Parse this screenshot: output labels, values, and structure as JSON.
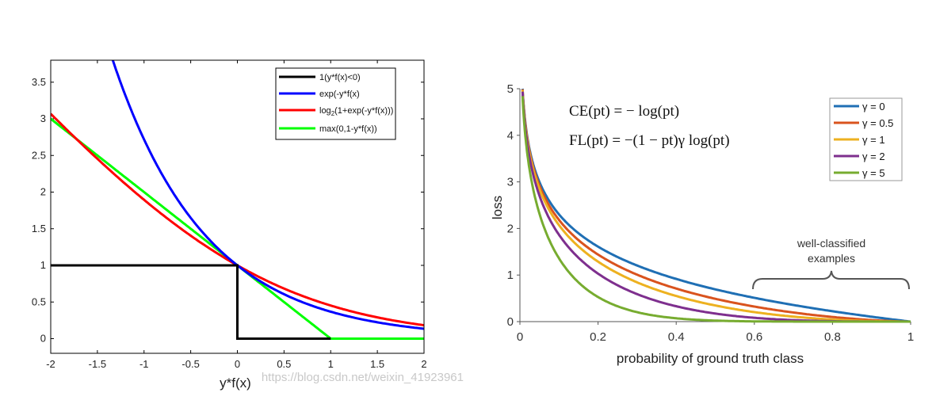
{
  "chart_data": [
    {
      "type": "line",
      "xlabel": "y*f(x)",
      "xlim": [
        -2,
        2
      ],
      "ylim": [
        -0.2,
        3.8
      ],
      "x_ticks": [
        "-2",
        "-1.5",
        "-1",
        "-0.5",
        "0",
        "0.5",
        "1",
        "1.5",
        "2"
      ],
      "y_ticks": [
        "0",
        "0.5",
        "1",
        "1.5",
        "2",
        "2.5",
        "3",
        "3.5"
      ],
      "legend_position": "top-right",
      "series": [
        {
          "name": "1(y*f(x)<0)",
          "label_main": "1(y*f(x)<0)",
          "function": "zero_one",
          "color": "#000000"
        },
        {
          "name": "exp(-y*f(x)",
          "label_main": "exp(-y*f(x)",
          "function": "exponential",
          "color": "#0000ff"
        },
        {
          "name": "log2(1+exp(-y*f(x)))",
          "label_main": "log",
          "label_sub": "2",
          "label_rest": "(1+exp(-y*f(x)))",
          "function": "logistic",
          "color": "#ff0000"
        },
        {
          "name": "max(0,1-y*f(x))",
          "label_main": "max(0,1-y*f(x))",
          "function": "hinge",
          "color": "#00ff00"
        }
      ]
    },
    {
      "type": "line",
      "xlabel": "probability of ground truth class",
      "ylabel": "loss",
      "xlim": [
        0,
        1
      ],
      "ylim": [
        0,
        5
      ],
      "x_ticks": [
        "0",
        "0.2",
        "0.4",
        "0.6",
        "0.8",
        "1"
      ],
      "y_ticks": [
        "0",
        "1",
        "2",
        "3",
        "4",
        "5"
      ],
      "legend_position": "top-right",
      "series": [
        {
          "name": "γ = 0",
          "gamma": 0,
          "color": "#1f6fb4"
        },
        {
          "name": "γ = 0.5",
          "gamma": 0.5,
          "color": "#d9531e"
        },
        {
          "name": "γ = 1",
          "gamma": 1,
          "color": "#edb120"
        },
        {
          "name": "γ = 2",
          "gamma": 2,
          "color": "#7e2f8e"
        },
        {
          "name": "γ = 5",
          "gamma": 5,
          "color": "#77ac30"
        }
      ],
      "annotations": {
        "ce_formula": "CE(pt) = − log(pt)",
        "fl_formula": "FL(pt) = −(1 − pt)γ log(pt)",
        "brace_label_1": "well-classified",
        "brace_label_2": "examples"
      }
    }
  ],
  "watermark": "https://blog.csdn.net/weixin_41923961"
}
